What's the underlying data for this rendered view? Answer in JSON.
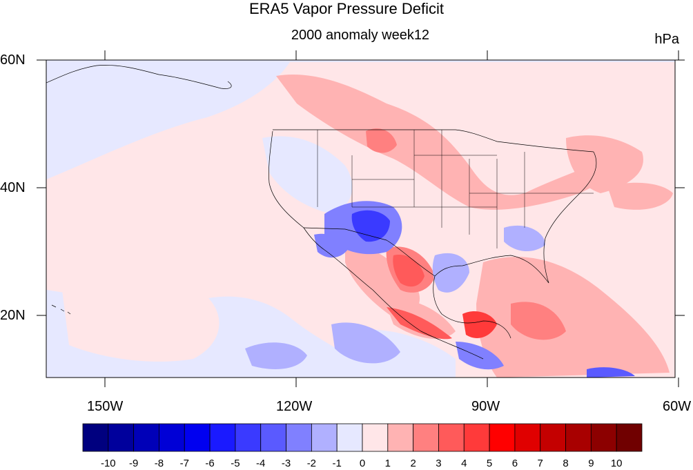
{
  "title": "ERA5 Vapor Pressure Deficit",
  "subtitle": "2000 anomaly week12",
  "units": "hPa",
  "y_axis_labels": [
    "60N",
    "40N",
    "20N"
  ],
  "x_axis_labels": [
    "150W",
    "120W",
    "90W",
    "60W"
  ],
  "colorbar": {
    "labels": [
      "-10",
      "-9",
      "-8",
      "-7",
      "-6",
      "-5",
      "-4",
      "-3",
      "-2",
      "-1",
      "0",
      "1",
      "2",
      "3",
      "4",
      "5",
      "6",
      "7",
      "8",
      "9",
      "10"
    ],
    "colors": [
      "#00007f",
      "#00009c",
      "#0000b8",
      "#0000d6",
      "#0000f0",
      "#1a1aff",
      "#3a3aff",
      "#5a5aff",
      "#8080ff",
      "#b0b0ff",
      "#e6e8ff",
      "#ffe6e8",
      "#ffb3b3",
      "#ff8080",
      "#ff5a5a",
      "#ff3a3a",
      "#ff0000",
      "#e00000",
      "#c40000",
      "#a80000",
      "#8c0000",
      "#700000"
    ]
  },
  "map_extent": {
    "lon_min": -160,
    "lon_max": -60,
    "lat_min": 10,
    "lat_max": 60
  }
}
